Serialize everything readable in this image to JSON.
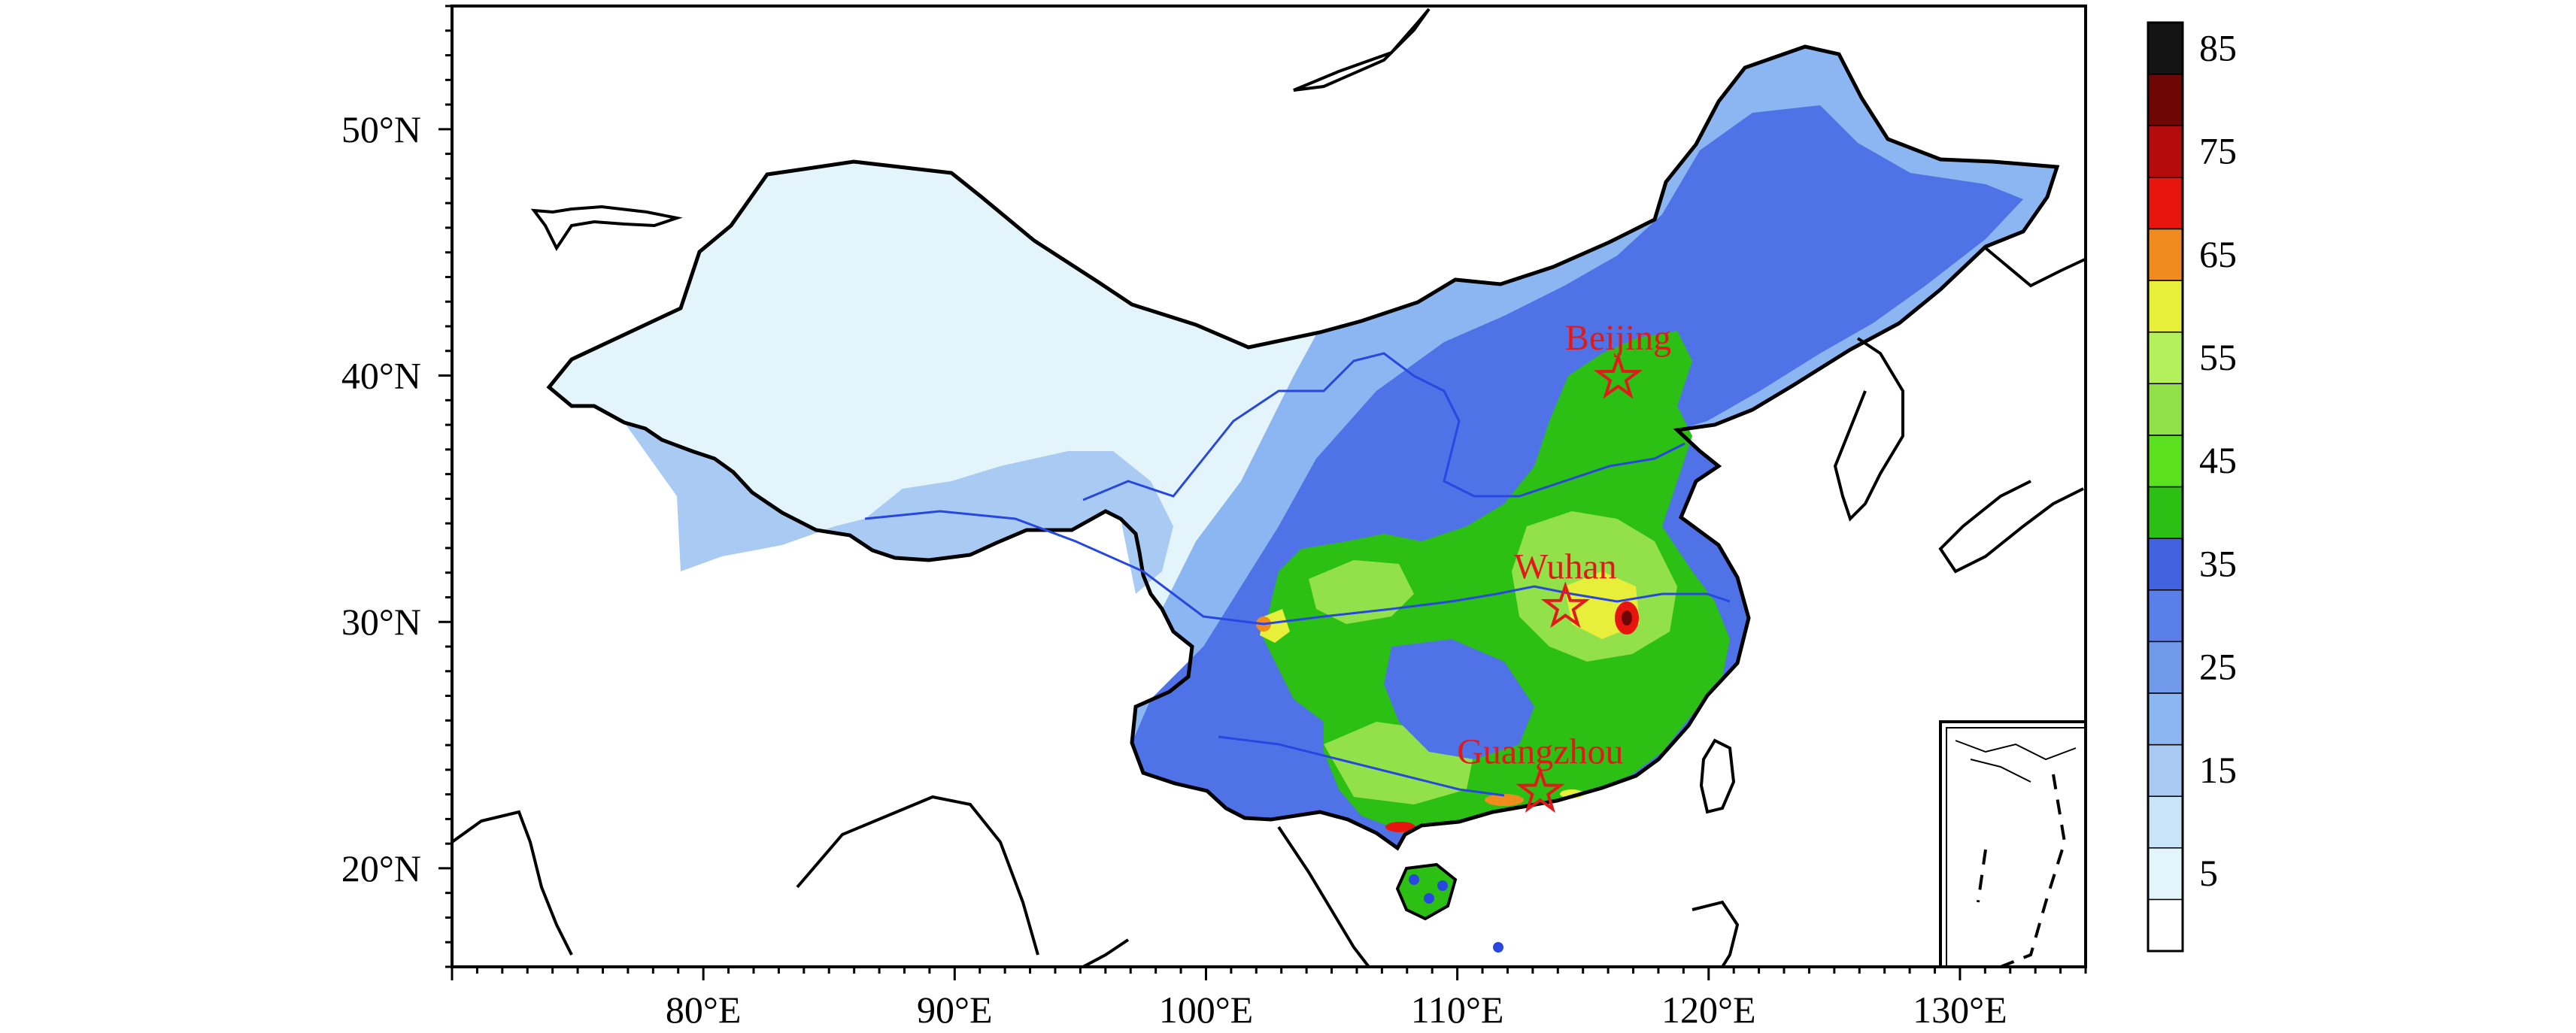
{
  "map": {
    "lon_range": [
      70,
      135
    ],
    "lat_range": [
      16,
      55
    ],
    "lon_ticks": [
      {
        "lon": 80,
        "label": "80°E"
      },
      {
        "lon": 90,
        "label": "90°E"
      },
      {
        "lon": 100,
        "label": "100°E"
      },
      {
        "lon": 110,
        "label": "110°E"
      },
      {
        "lon": 120,
        "label": "120°E"
      },
      {
        "lon": 130,
        "label": "130°E"
      }
    ],
    "lat_ticks": [
      {
        "lat": 50,
        "label": "50°N"
      },
      {
        "lat": 40,
        "label": "40°N"
      },
      {
        "lat": 30,
        "label": "30°N"
      },
      {
        "lat": 20,
        "label": "20°N"
      }
    ],
    "cities": [
      {
        "name": "Beijing",
        "lon": 116.4,
        "lat": 39.9
      },
      {
        "name": "Wuhan",
        "lon": 114.3,
        "lat": 30.6
      },
      {
        "name": "Guangzhou",
        "lon": 113.3,
        "lat": 23.1
      }
    ],
    "station_color": "#2747e0",
    "star_color": "#e01a1a"
  },
  "colorbar": {
    "levels": [
      0,
      5,
      10,
      15,
      20,
      25,
      30,
      35,
      40,
      45,
      50,
      55,
      60,
      65,
      70,
      75,
      80,
      85,
      90
    ],
    "colors": [
      "#ffffff",
      "#e3f4fb",
      "#c9e3f7",
      "#a9cbf3",
      "#8cb6f2",
      "#7199ea",
      "#5b7fe8",
      "#4262e2",
      "#2cbf14",
      "#5ae01e",
      "#92e04a",
      "#b4ef5e",
      "#e8ef3a",
      "#f08c1e",
      "#e8140e",
      "#b40c0c",
      "#6e0606",
      "#141414"
    ],
    "labels": [
      "5",
      "15",
      "25",
      "35",
      "45",
      "55",
      "65",
      "75",
      "85"
    ]
  }
}
